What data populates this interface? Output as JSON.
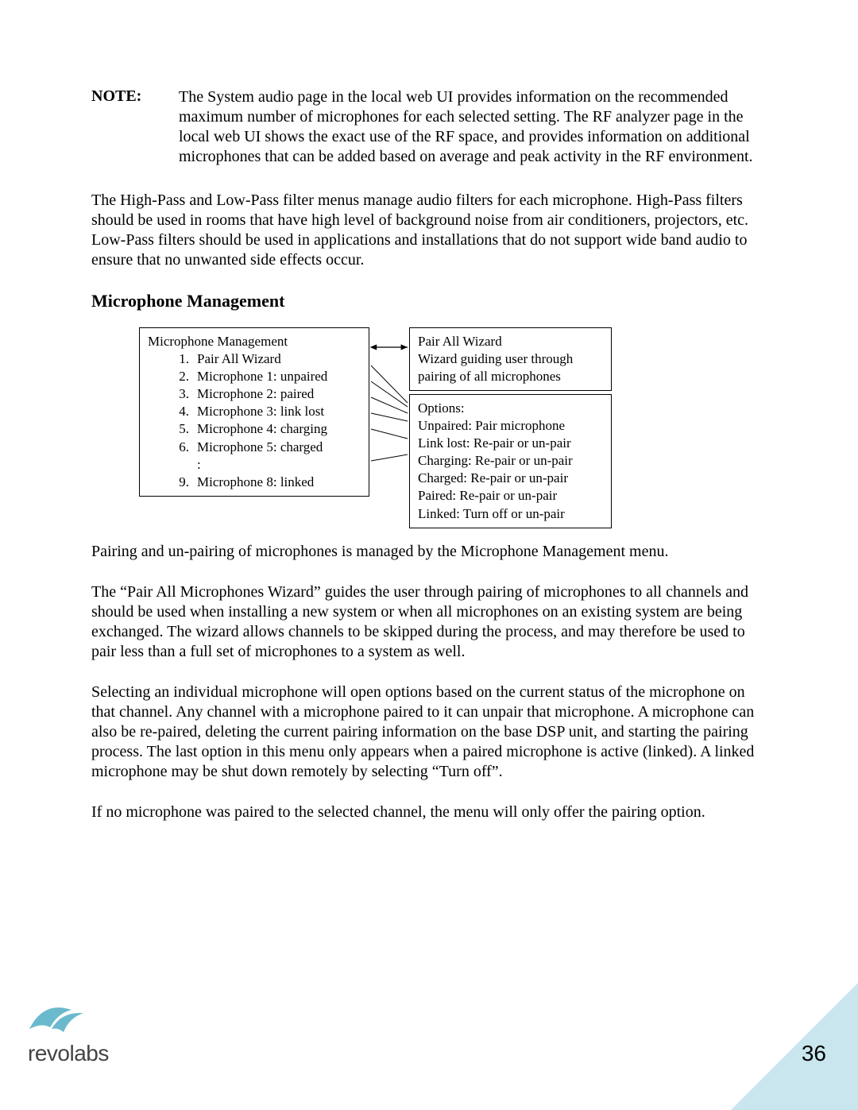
{
  "note": {
    "label": "NOTE:",
    "text": "The System audio page in the local web UI provides information on the recommended maximum number of microphones for each selected setting.  The RF analyzer page in the local web UI shows the exact use of the RF space, and provides information on additional microphones that can be added based on average and peak activity in the RF environment."
  },
  "para1": "The High-Pass and Low-Pass filter menus manage audio filters for each microphone.  High-Pass filters should be used in rooms that have high level of background noise from air conditioners, projectors, etc.  Low-Pass filters should be used in applications and installations that do not support wide band audio to ensure that no unwanted side effects occur.",
  "heading": "Microphone Management",
  "diagram": {
    "left": {
      "title": "Microphone Management",
      "items": [
        {
          "num": "1.",
          "text": "Pair All Wizard"
        },
        {
          "num": "2.",
          "text": "Microphone 1: unpaired"
        },
        {
          "num": "3.",
          "text": "Microphone 2: paired"
        },
        {
          "num": "4.",
          "text": "Microphone 3: link lost"
        },
        {
          "num": "5.",
          "text": "Microphone 4: charging"
        },
        {
          "num": "6.",
          "text": "Microphone 5: charged"
        },
        {
          "num": "",
          "text": ":"
        },
        {
          "num": "9.",
          "text": "Microphone 8: linked"
        }
      ]
    },
    "rightTop": {
      "line1": "Pair All Wizard",
      "line2": "Wizard guiding user through pairing of all microphones"
    },
    "rightBottom": {
      "title": "Options:",
      "lines": [
        "Unpaired: Pair microphone",
        "Link lost: Re-pair or un-pair",
        "Charging: Re-pair or un-pair",
        "Charged: Re-pair or un-pair",
        "Paired: Re-pair or un-pair",
        "Linked: Turn off or un-pair"
      ]
    }
  },
  "para2": "Pairing and un-pairing of microphones is managed by the Microphone Management menu.",
  "para3": "The “Pair All Microphones Wizard” guides the user through pairing of microphones to all channels and should be used when installing a new system or when all microphones on an existing system are being exchanged.  The wizard allows channels to be skipped during the process, and may therefore be used to pair less than a full set of microphones to a system as well.",
  "para4": "Selecting an individual microphone will open options based on the current status of the microphone on that channel.  Any channel with a microphone paired to it can unpair that microphone.  A microphone can also be re-paired, deleting the current pairing information on the base DSP unit, and starting the pairing process.  The last option in this menu only appears when a paired microphone is active (linked).   A linked microphone may be shut down remotely by selecting “Turn off”.",
  "para5": "If no microphone was paired to the selected channel, the menu will only offer the pairing option.",
  "logo": {
    "brand": "revo",
    "brand2": "labs"
  },
  "pageNumber": "36",
  "colors": {
    "corner": "#c9e6ee",
    "logoShape": "#6bb9cc"
  }
}
